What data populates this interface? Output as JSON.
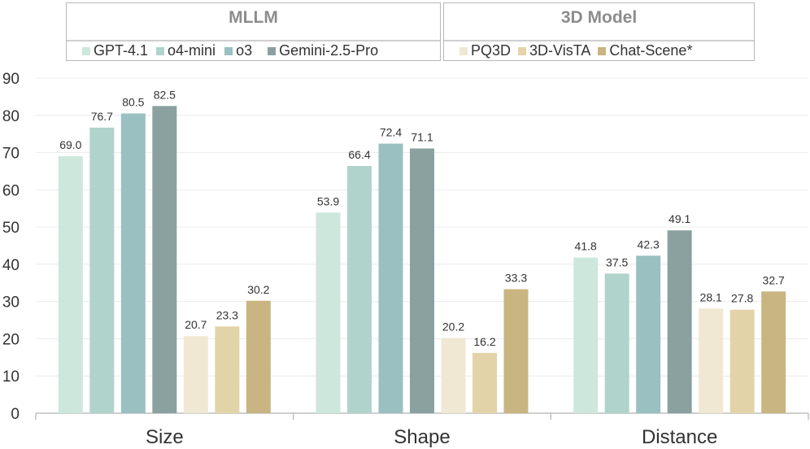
{
  "chart_data": {
    "type": "bar",
    "categories": [
      "Size",
      "Shape",
      "Distance"
    ],
    "ylim": [
      0,
      90
    ],
    "yticks": [
      0,
      10,
      20,
      30,
      40,
      50,
      60,
      70,
      80,
      90
    ],
    "grid": true,
    "legend_groups": [
      {
        "title": "MLLM",
        "series_names": [
          "GPT-4.1",
          "o4-mini",
          "o3",
          "Gemini-2.5-Pro"
        ]
      },
      {
        "title": "3D Model",
        "series_names": [
          "PQ3D",
          "3D-VisTA",
          "Chat-Scene*"
        ]
      }
    ],
    "series": [
      {
        "name": "GPT-4.1",
        "color": "#cde7dc",
        "values": [
          69.0,
          53.9,
          41.8
        ]
      },
      {
        "name": "o4-mini",
        "color": "#b0d3cc",
        "values": [
          76.7,
          66.4,
          37.5
        ]
      },
      {
        "name": "o3",
        "color": "#9ac0c2",
        "values": [
          80.5,
          72.4,
          42.3
        ]
      },
      {
        "name": "Gemini-2.5-Pro",
        "color": "#8aa19f",
        "values": [
          82.5,
          71.1,
          49.1
        ]
      },
      {
        "name": "PQ3D",
        "color": "#f1e8d3",
        "values": [
          20.7,
          20.2,
          28.1
        ]
      },
      {
        "name": "3D-VisTA",
        "color": "#e3d3a8",
        "values": [
          23.3,
          16.2,
          27.8
        ]
      },
      {
        "name": "Chat-Scene*",
        "color": "#c9b582",
        "values": [
          30.2,
          33.3,
          32.7
        ]
      }
    ]
  }
}
